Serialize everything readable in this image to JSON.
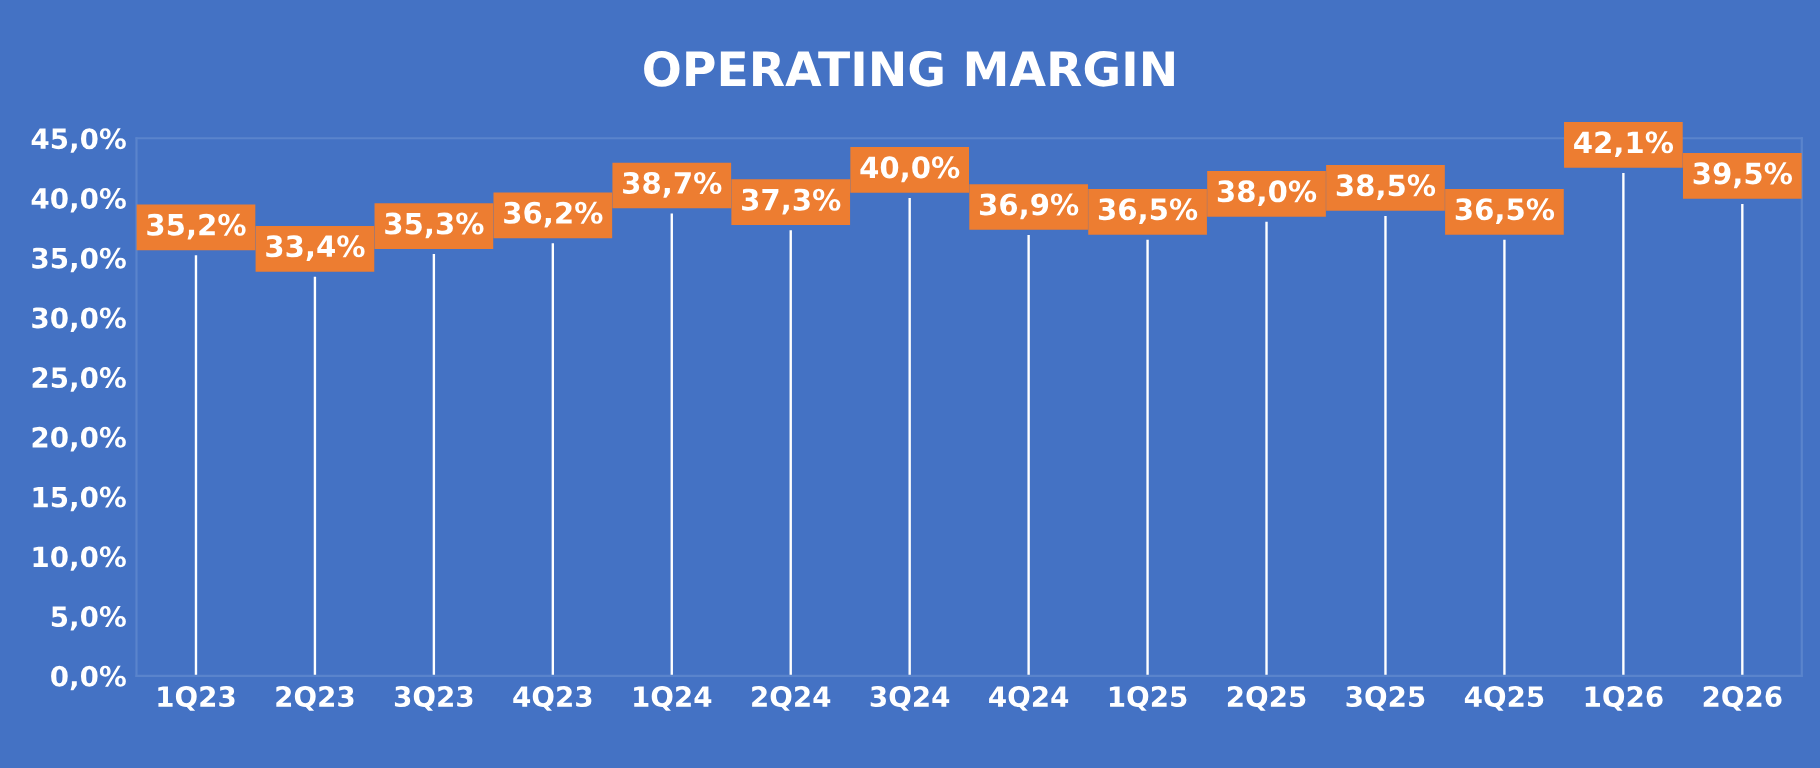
{
  "chart_data": {
    "type": "bar",
    "title": "OPERATING MARGIN",
    "categories": [
      "1Q23",
      "2Q23",
      "3Q23",
      "4Q23",
      "1Q24",
      "2Q24",
      "3Q24",
      "4Q24",
      "1Q25",
      "2Q25",
      "3Q25",
      "4Q25",
      "1Q26",
      "2Q26"
    ],
    "series": [
      {
        "color": "#ffffff",
        "values": [
          35.2,
          33.4,
          35.3,
          36.2,
          38.7,
          37.3,
          40.0,
          36.9,
          36.5,
          38.0,
          38.5,
          36.5,
          42.1,
          39.5
        ],
        "value_labels": [
          "35,2%",
          "33,4%",
          "35,3%",
          "36,2%",
          "38,7%",
          "37,3%",
          "40,0%",
          "36,9%",
          "36,5%",
          "38,0%",
          "38,5%",
          "36,5%",
          "42,1%",
          "39,5%"
        ]
      }
    ],
    "ylim": [
      0,
      45
    ],
    "yticks": [
      {
        "value": 0,
        "label": "0,0%"
      },
      {
        "value": 5,
        "label": "5,0%"
      },
      {
        "value": 10,
        "label": "10,0%"
      },
      {
        "value": 15,
        "label": "15,0%"
      },
      {
        "value": 20,
        "label": "20,0%"
      },
      {
        "value": 25,
        "label": "25,0%"
      },
      {
        "value": 30,
        "label": "30,0%"
      },
      {
        "value": 35,
        "label": "35,0%"
      },
      {
        "value": 40,
        "label": "40,0%"
      },
      {
        "value": 45,
        "label": "45,0%"
      }
    ],
    "grid": false,
    "legend": false
  }
}
